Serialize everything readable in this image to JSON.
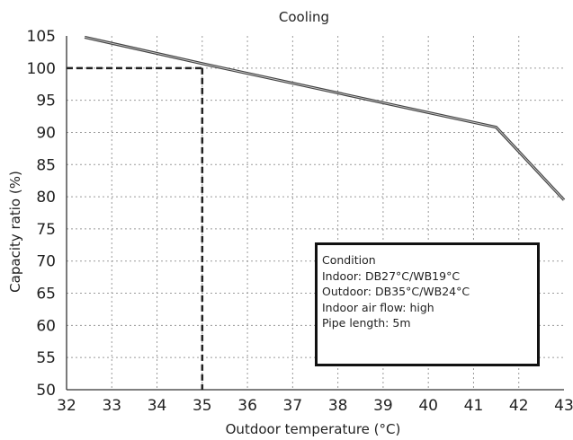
{
  "chart_data": {
    "type": "line",
    "title": "Cooling",
    "xlabel": "Outdoor temperature (°C)",
    "ylabel": "Capacity ratio (%)",
    "xlim": [
      32,
      43
    ],
    "ylim": [
      50,
      105
    ],
    "x_ticks": [
      "32",
      "33",
      "34",
      "35",
      "36",
      "37",
      "38",
      "39",
      "40",
      "41",
      "42",
      "43"
    ],
    "y_ticks": [
      "50",
      "55",
      "60",
      "65",
      "70",
      "75",
      "80",
      "85",
      "90",
      "95",
      "100",
      "105"
    ],
    "grid": true,
    "series": [
      {
        "x": [
          32.4,
          35,
          41.5,
          43
        ],
        "y": [
          104.8,
          100.7,
          90.8,
          79.5
        ],
        "color": "#444444"
      }
    ],
    "reference": {
      "x": 35,
      "y": 100,
      "style": "dashed"
    }
  },
  "condition": {
    "lines": [
      "Condition",
      "Indoor: DB27°C/WB19°C",
      "Outdoor: DB35°C/WB24°C",
      "Indoor air flow: high",
      "Pipe length: 5m"
    ]
  }
}
